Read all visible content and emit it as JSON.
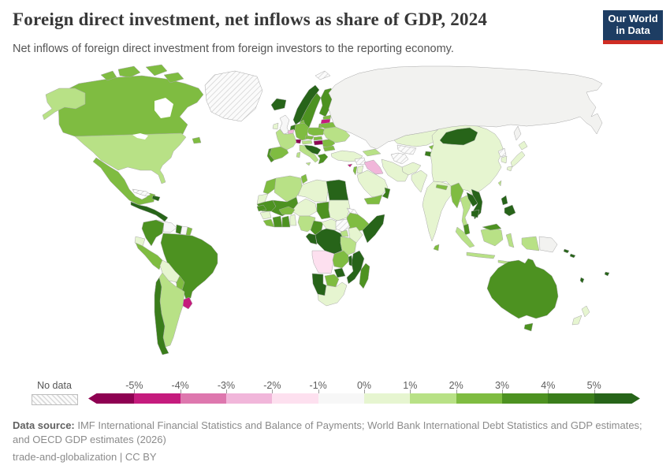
{
  "header": {
    "title": "Foreign direct investment, net inflows as share of GDP, 2024",
    "subtitle": "Net inflows of foreign direct investment from foreign investors to the reporting economy."
  },
  "logo": {
    "line1": "Our World",
    "line2": "in Data",
    "bg_color": "#1d3d63",
    "accent_color": "#cf2d24"
  },
  "legend": {
    "no_data_label": "No data",
    "ticks": [
      "-5%",
      "-4%",
      "-3%",
      "-2%",
      "-1%",
      "0%",
      "1%",
      "2%",
      "3%",
      "4%",
      "5%"
    ],
    "bin_colors": [
      "#8e0152",
      "#c51b7d",
      "#de77ae",
      "#f1b6da",
      "#fde0ef",
      "#f7f7f7",
      "#e6f5d0",
      "#b8e186",
      "#7fbc41",
      "#4d9221",
      "#3a7d1b",
      "#276419"
    ]
  },
  "footer": {
    "data_source_label": "Data source:",
    "data_source_text": " IMF International Financial Statistics and Balance of Payments; World Bank International Debt Statistics and GDP estimates; and OECD GDP estimates (2026)",
    "attribution": "trade-and-globalization | CC BY"
  },
  "chart_data": {
    "type": "heatmap",
    "subtype": "world-choropleth-map",
    "title": "Foreign direct investment, net inflows as share of GDP, 2024",
    "unit": "% of GDP",
    "year": "2024",
    "legend_bins": [
      "< -5%",
      "-5% to -4%",
      "-4% to -3%",
      "-3% to -2%",
      "-2% to -1%",
      "-1% to 0%",
      "0% to 1%",
      "1% to 2%",
      "2% to 3%",
      "3% to 4%",
      "4% to 5%",
      "> 5%",
      "No data"
    ],
    "regions": {
      "greenland": {
        "label": "Greenland",
        "bin": "No data",
        "color": "no-data"
      },
      "svalbard": {
        "label": "Svalbard",
        "bin": "No data",
        "color": "no-data"
      },
      "iceland": {
        "label": "Iceland",
        "bin": "> 5%",
        "color": "#276419"
      },
      "canada": {
        "label": "Canada",
        "bin": "2% to 3%",
        "color": "#7fbc41"
      },
      "usa": {
        "label": "United States",
        "bin": "1% to 2%",
        "color": "#b8e186"
      },
      "mexico": {
        "label": "Mexico",
        "bin": "2% to 3%",
        "color": "#7fbc41"
      },
      "central-america": {
        "label": "Central America",
        "bin": "> 5%",
        "color": "#276419"
      },
      "cuba": {
        "label": "Cuba",
        "bin": "No data",
        "color": "no-data"
      },
      "hispaniola": {
        "label": "Dominican Republic",
        "bin": "> 5%",
        "color": "#276419"
      },
      "colombia": {
        "label": "Colombia",
        "bin": "3% to 4%",
        "color": "#4d9221"
      },
      "venezuela": {
        "label": "Venezuela",
        "bin": "-1% to 0%",
        "color": "#f7f7f7"
      },
      "guyana": {
        "label": "Guyana",
        "bin": "4% to 5%",
        "color": "#3a7d1b"
      },
      "suriname": {
        "label": "Suriname",
        "bin": "-1% to 0%",
        "color": "#f7f7f7"
      },
      "french-guiana": {
        "label": "French Guiana",
        "bin": "2% to 3%",
        "color": "#7fbc41"
      },
      "ecuador": {
        "label": "Ecuador",
        "bin": "0% to 1%",
        "color": "#e6f5d0"
      },
      "peru": {
        "label": "Peru",
        "bin": "2% to 3%",
        "color": "#7fbc41"
      },
      "brazil": {
        "label": "Brazil",
        "bin": "3% to 4%",
        "color": "#4d9221"
      },
      "bolivia": {
        "label": "Bolivia",
        "bin": "0% to 1%",
        "color": "#e6f5d0"
      },
      "paraguay": {
        "label": "Paraguay",
        "bin": "2% to 3%",
        "color": "#7fbc41"
      },
      "uruguay": {
        "label": "Uruguay",
        "bin": "-5% to -4%",
        "color": "#c51b7d"
      },
      "argentina": {
        "label": "Argentina",
        "bin": "1% to 2%",
        "color": "#b8e186"
      },
      "chile": {
        "label": "Chile",
        "bin": "4% to 5%",
        "color": "#3a7d1b"
      },
      "uk": {
        "label": "United Kingdom",
        "bin": "-1% to 0%",
        "color": "#f7f7f7"
      },
      "ireland": {
        "label": "Ireland",
        "bin": "0% to 1%",
        "color": "#e6f5d0"
      },
      "norway": {
        "label": "Norway",
        "bin": "> 5%",
        "color": "#276419"
      },
      "sweden": {
        "label": "Sweden",
        "bin": "3% to 4%",
        "color": "#4d9221"
      },
      "finland": {
        "label": "Finland",
        "bin": "3% to 4%",
        "color": "#4d9221"
      },
      "denmark": {
        "label": "Denmark",
        "bin": "2% to 3%",
        "color": "#7fbc41"
      },
      "estonia": {
        "label": "Estonia",
        "bin": "2% to 3%",
        "color": "#7fbc41"
      },
      "latvia": {
        "label": "Latvia",
        "bin": "-5% to -4%",
        "color": "#c51b7d"
      },
      "lithuania": {
        "label": "Lithuania",
        "bin": "2% to 3%",
        "color": "#7fbc41"
      },
      "belarus": {
        "label": "Belarus",
        "bin": "2% to 3%",
        "color": "#7fbc41"
      },
      "poland": {
        "label": "Poland",
        "bin": "2% to 3%",
        "color": "#7fbc41"
      },
      "germany": {
        "label": "Germany",
        "bin": "2% to 3%",
        "color": "#7fbc41"
      },
      "netherlands": {
        "label": "Netherlands",
        "bin": "4% to 5%",
        "color": "#3a7d1b"
      },
      "belgium": {
        "label": "Belgium",
        "bin": "-3% to -2%",
        "color": "#f1b6da"
      },
      "france": {
        "label": "France",
        "bin": "1% to 2%",
        "color": "#b8e186"
      },
      "switzerland": {
        "label": "Switzerland",
        "bin": "< -5%",
        "color": "#8e0152"
      },
      "austria": {
        "label": "Austria",
        "bin": "1% to 2%",
        "color": "#b8e186"
      },
      "czechia": {
        "label": "Czechia",
        "bin": "2% to 3%",
        "color": "#7fbc41"
      },
      "slovakia": {
        "label": "Slovakia",
        "bin": "2% to 3%",
        "color": "#7fbc41"
      },
      "hungary": {
        "label": "Hungary",
        "bin": "< -5%",
        "color": "#8e0152"
      },
      "italy": {
        "label": "Italy",
        "bin": "1% to 2%",
        "color": "#b8e186"
      },
      "spain": {
        "label": "Spain",
        "bin": "2% to 3%",
        "color": "#7fbc41"
      },
      "portugal": {
        "label": "Portugal",
        "bin": "3% to 4%",
        "color": "#4d9221"
      },
      "balkans": {
        "label": "Serbia and Western Balkans",
        "bin": "> 5%",
        "color": "#276419"
      },
      "greece": {
        "label": "Greece",
        "bin": "3% to 4%",
        "color": "#4d9221"
      },
      "romania": {
        "label": "Romania",
        "bin": "2% to 3%",
        "color": "#7fbc41"
      },
      "bulgaria": {
        "label": "Bulgaria",
        "bin": "2% to 3%",
        "color": "#7fbc41"
      },
      "ukraine": {
        "label": "Ukraine",
        "bin": "1% to 2%",
        "color": "#b8e186"
      },
      "russia": {
        "label": "Russia",
        "bin": "-1% to 0%",
        "color": "#f2f2f0"
      },
      "kazakhstan": {
        "label": "Kazakhstan",
        "bin": "0% to 1%",
        "color": "#e6f5d0"
      },
      "uzbekistan": {
        "label": "Uzbekistan",
        "bin": "No data",
        "color": "no-data"
      },
      "turkmenistan": {
        "label": "Turkmenistan",
        "bin": "No data",
        "color": "no-data"
      },
      "kyrgyzstan": {
        "label": "Kyrgyzstan",
        "bin": "2% to 3%",
        "color": "#7fbc41"
      },
      "tajikistan": {
        "label": "Tajikistan",
        "bin": "4% to 5%",
        "color": "#3a7d1b"
      },
      "afghanistan": {
        "label": "Afghanistan",
        "bin": "0% to 1%",
        "color": "#e6f5d0"
      },
      "pakistan": {
        "label": "Pakistan",
        "bin": "0% to 1%",
        "color": "#e6f5d0"
      },
      "iran": {
        "label": "Iran",
        "bin": "0% to 1%",
        "color": "#e6f5d0"
      },
      "iraq": {
        "label": "Iraq",
        "bin": "-3% to -2%",
        "color": "#f1b6da"
      },
      "syria": {
        "label": "Syria",
        "bin": "No data",
        "color": "no-data"
      },
      "turkey": {
        "label": "Turkey",
        "bin": "0% to 1%",
        "color": "#e6f5d0"
      },
      "cyprus": {
        "label": "Cyprus",
        "bin": "-5% to -4%",
        "color": "#c51b7d"
      },
      "israel": {
        "label": "Israel",
        "bin": "2% to 3%",
        "color": "#7fbc41"
      },
      "jordan": {
        "label": "Jordan",
        "bin": "0% to 1%",
        "color": "#e6f5d0"
      },
      "saudi-arabia": {
        "label": "Saudi Arabia",
        "bin": "0% to 1%",
        "color": "#e6f5d0"
      },
      "yemen": {
        "label": "Yemen",
        "bin": "2% to 3%",
        "color": "#7fbc41"
      },
      "oman": {
        "label": "Oman",
        "bin": "4% to 5%",
        "color": "#3a7d1b"
      },
      "caucasus": {
        "label": "Georgia, Armenia and Azerbaijan",
        "bin": "1% to 2%",
        "color": "#b8e186"
      },
      "india": {
        "label": "India",
        "bin": "0% to 1%",
        "color": "#e6f5d0"
      },
      "nepal": {
        "label": "Nepal",
        "bin": "2% to 3%",
        "color": "#7fbc41"
      },
      "bangladesh": {
        "label": "Bangladesh",
        "bin": "0% to 1%",
        "color": "#e6f5d0"
      },
      "sri-lanka": {
        "label": "Sri Lanka",
        "bin": "2% to 3%",
        "color": "#7fbc41"
      },
      "china": {
        "label": "China",
        "bin": "0% to 1%",
        "color": "#e6f5d0"
      },
      "mongolia": {
        "label": "Mongolia",
        "bin": "> 5%",
        "color": "#276419"
      },
      "north-korea": {
        "label": "North Korea",
        "bin": "No data",
        "color": "no-data"
      },
      "south-korea": {
        "label": "South Korea",
        "bin": "0% to 1%",
        "color": "#e6f5d0"
      },
      "japan": {
        "label": "Japan",
        "bin": "0% to 1%",
        "color": "#e6f5d0"
      },
      "taiwan": {
        "label": "Taiwan",
        "bin": "1% to 2%",
        "color": "#b8e186"
      },
      "myanmar": {
        "label": "Myanmar",
        "bin": "2% to 3%",
        "color": "#7fbc41"
      },
      "thailand": {
        "label": "Thailand",
        "bin": "1% to 2%",
        "color": "#b8e186"
      },
      "laos": {
        "label": "Laos",
        "bin": "> 5%",
        "color": "#276419"
      },
      "vietnam": {
        "label": "Vietnam",
        "bin": "> 5%",
        "color": "#276419"
      },
      "cambodia": {
        "label": "Cambodia",
        "bin": "> 5%",
        "color": "#276419"
      },
      "malaysia": {
        "label": "Malaysia",
        "bin": "3% to 4%",
        "color": "#4d9221"
      },
      "philippines": {
        "label": "Philippines",
        "bin": "> 5%",
        "color": "#276419"
      },
      "indonesia": {
        "label": "Indonesia",
        "bin": "1% to 2%",
        "color": "#b8e186"
      },
      "papua-new-guinea": {
        "label": "Papua New Guinea",
        "bin": "-1% to 0%",
        "color": "#f2f2f0"
      },
      "solomon-islands": {
        "label": "Solomon Islands",
        "bin": "> 5%",
        "color": "#276419"
      },
      "vanuatu": {
        "label": "Vanuatu and New Caledonia",
        "bin": "> 5%",
        "color": "#276419"
      },
      "fiji": {
        "label": "Fiji",
        "bin": "> 5%",
        "color": "#276419"
      },
      "australia": {
        "label": "Australia",
        "bin": "3% to 4%",
        "color": "#4d9221"
      },
      "new-zealand": {
        "label": "New Zealand",
        "bin": "0% to 1%",
        "color": "#e6f5d0"
      },
      "morocco": {
        "label": "Morocco",
        "bin": "2% to 3%",
        "color": "#7fbc41"
      },
      "western-sahara": {
        "label": "Western Sahara",
        "bin": "0% to 1%",
        "color": "#e6f5d0"
      },
      "algeria": {
        "label": "Algeria",
        "bin": "1% to 2%",
        "color": "#b8e186"
      },
      "tunisia": {
        "label": "Tunisia",
        "bin": "2% to 3%",
        "color": "#7fbc41"
      },
      "libya": {
        "label": "Libya",
        "bin": "0% to 1%",
        "color": "#e6f5d0"
      },
      "egypt": {
        "label": "Egypt",
        "bin": "> 5%",
        "color": "#276419"
      },
      "mauritania": {
        "label": "Mauritania",
        "bin": "3% to 4%",
        "color": "#4d9221"
      },
      "mali": {
        "label": "Mali",
        "bin": "3% to 4%",
        "color": "#4d9221"
      },
      "niger": {
        "label": "Niger",
        "bin": "0% to 1%",
        "color": "#e6f5d0"
      },
      "chad": {
        "label": "Chad",
        "bin": "3% to 4%",
        "color": "#4d9221"
      },
      "sudan": {
        "label": "Sudan",
        "bin": "0% to 1%",
        "color": "#e6f5d0"
      },
      "eritrea": {
        "label": "Eritrea",
        "bin": "No data",
        "color": "no-data"
      },
      "ethiopia": {
        "label": "Ethiopia",
        "bin": "2% to 3%",
        "color": "#7fbc41"
      },
      "somalia": {
        "label": "Somalia",
        "bin": "> 5%",
        "color": "#276419"
      },
      "senegal": {
        "label": "Senegal",
        "bin": "3% to 4%",
        "color": "#4d9221"
      },
      "guinea": {
        "label": "Guinea",
        "bin": "0% to 1%",
        "color": "#e6f5d0"
      },
      "sierra-leone": {
        "label": "Sierra Leone and Liberia",
        "bin": "2% to 3%",
        "color": "#7fbc41"
      },
      "ivory-coast": {
        "label": "Cote d'Ivoire",
        "bin": "3% to 4%",
        "color": "#4d9221"
      },
      "ghana": {
        "label": "Ghana",
        "bin": "3% to 4%",
        "color": "#4d9221"
      },
      "togo-benin": {
        "label": "Togo and Benin",
        "bin": "0% to 1%",
        "color": "#e6f5d0"
      },
      "burkina-faso": {
        "label": "Burkina Faso",
        "bin": "2% to 3%",
        "color": "#7fbc41"
      },
      "nigeria": {
        "label": "Nigeria",
        "bin": "1% to 2%",
        "color": "#b8e186"
      },
      "cameroon": {
        "label": "Cameroon",
        "bin": "3% to 4%",
        "color": "#4d9221"
      },
      "central-african-republic": {
        "label": "Central African Republic",
        "bin": "0% to 1%",
        "color": "#e6f5d0"
      },
      "south-sudan": {
        "label": "South Sudan",
        "bin": "No data",
        "color": "no-data"
      },
      "uganda": {
        "label": "Uganda",
        "bin": "1% to 2%",
        "color": "#b8e186"
      },
      "kenya": {
        "label": "Kenya",
        "bin": "0% to 1%",
        "color": "#e6f5d0"
      },
      "drc": {
        "label": "Democratic Republic of Congo",
        "bin": "> 5%",
        "color": "#276419"
      },
      "congo-gabon": {
        "label": "Congo and Gabon",
        "bin": "> 5%",
        "color": "#276419"
      },
      "tanzania": {
        "label": "Tanzania",
        "bin": "1% to 2%",
        "color": "#b8e186"
      },
      "angola": {
        "label": "Angola",
        "bin": "-2% to -1%",
        "color": "#fde0ef"
      },
      "zambia": {
        "label": "Zambia",
        "bin": "2% to 3%",
        "color": "#7fbc41"
      },
      "malawi": {
        "label": "Malawi",
        "bin": "> 5%",
        "color": "#276419"
      },
      "mozambique": {
        "label": "Mozambique",
        "bin": "> 5%",
        "color": "#276419"
      },
      "zimbabwe": {
        "label": "Zimbabwe",
        "bin": "> 5%",
        "color": "#276419"
      },
      "botswana": {
        "label": "Botswana",
        "bin": "2% to 3%",
        "color": "#7fbc41"
      },
      "namibia": {
        "label": "Namibia",
        "bin": "> 5%",
        "color": "#276419"
      },
      "south-africa": {
        "label": "South Africa",
        "bin": "0% to 1%",
        "color": "#e6f5d0"
      },
      "madagascar": {
        "label": "Madagascar",
        "bin": "3% to 4%",
        "color": "#4d9221"
      }
    }
  }
}
